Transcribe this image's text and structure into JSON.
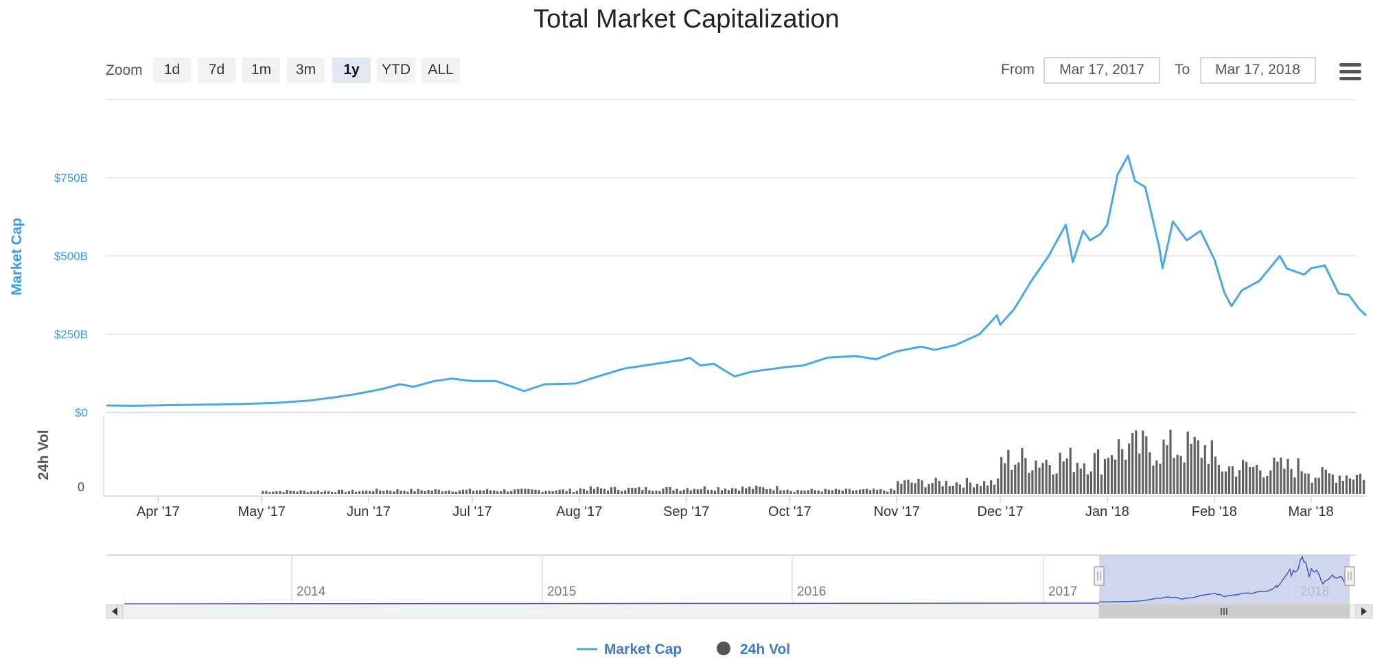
{
  "chart_data": {
    "type": "line",
    "title": "Total Market Capitalization",
    "zoom": {
      "label": "Zoom",
      "buttons": [
        "1d",
        "7d",
        "1m",
        "3m",
        "1y",
        "YTD",
        "ALL"
      ],
      "selected": "1y"
    },
    "range": {
      "from_label": "From",
      "from_value": "Mar 17, 2017",
      "to_label": "To",
      "to_value": "Mar 17, 2018"
    },
    "menu_icon": "hamburger-menu-icon",
    "market_cap_axis": {
      "title": "Market Cap",
      "ticks": [
        "$0",
        "$250B",
        "$500B",
        "$750B"
      ],
      "tick_values": [
        0,
        250,
        500,
        750
      ],
      "range": [
        0,
        1000
      ],
      "unit": "billion USD",
      "color": "#3d9ddc"
    },
    "volume_axis": {
      "title": "24h Vol",
      "ticks": [
        "0"
      ],
      "color": "#555555"
    },
    "x_axis": {
      "ticks": [
        "Apr '17",
        "May '17",
        "Jun '17",
        "Jul '17",
        "Aug '17",
        "Sep '17",
        "Oct '17",
        "Nov '17",
        "Dec '17",
        "Jan '18",
        "Feb '18",
        "Mar '18"
      ],
      "range": [
        "2017-03-17",
        "2018-03-17"
      ]
    },
    "series": [
      {
        "name": "Market Cap",
        "color": "#4aa7e0",
        "points": [
          [
            "2017-03-17",
            22
          ],
          [
            "2017-03-25",
            21
          ],
          [
            "2017-04-05",
            23
          ],
          [
            "2017-04-15",
            25
          ],
          [
            "2017-04-25",
            27
          ],
          [
            "2017-05-05",
            30
          ],
          [
            "2017-05-15",
            38
          ],
          [
            "2017-05-22",
            48
          ],
          [
            "2017-05-28",
            58
          ],
          [
            "2017-06-05",
            75
          ],
          [
            "2017-06-10",
            90
          ],
          [
            "2017-06-14",
            82
          ],
          [
            "2017-06-20",
            100
          ],
          [
            "2017-06-25",
            108
          ],
          [
            "2017-07-01",
            100
          ],
          [
            "2017-07-08",
            100
          ],
          [
            "2017-07-16",
            68
          ],
          [
            "2017-07-22",
            90
          ],
          [
            "2017-07-31",
            92
          ],
          [
            "2017-08-05",
            110
          ],
          [
            "2017-08-14",
            140
          ],
          [
            "2017-08-20",
            150
          ],
          [
            "2017-08-31",
            168
          ],
          [
            "2017-09-02",
            175
          ],
          [
            "2017-09-05",
            150
          ],
          [
            "2017-09-09",
            155
          ],
          [
            "2017-09-15",
            115
          ],
          [
            "2017-09-20",
            130
          ],
          [
            "2017-09-30",
            145
          ],
          [
            "2017-10-05",
            150
          ],
          [
            "2017-10-12",
            175
          ],
          [
            "2017-10-20",
            180
          ],
          [
            "2017-10-26",
            170
          ],
          [
            "2017-11-01",
            195
          ],
          [
            "2017-11-08",
            210
          ],
          [
            "2017-11-12",
            200
          ],
          [
            "2017-11-18",
            215
          ],
          [
            "2017-11-25",
            250
          ],
          [
            "2017-11-30",
            310
          ],
          [
            "2017-12-01",
            280
          ],
          [
            "2017-12-05",
            330
          ],
          [
            "2017-12-10",
            420
          ],
          [
            "2017-12-15",
            500
          ],
          [
            "2017-12-20",
            600
          ],
          [
            "2017-12-22",
            480
          ],
          [
            "2017-12-25",
            580
          ],
          [
            "2017-12-27",
            550
          ],
          [
            "2017-12-30",
            570
          ],
          [
            "2018-01-01",
            600
          ],
          [
            "2018-01-04",
            760
          ],
          [
            "2018-01-07",
            820
          ],
          [
            "2018-01-09",
            740
          ],
          [
            "2018-01-12",
            720
          ],
          [
            "2018-01-16",
            530
          ],
          [
            "2018-01-17",
            460
          ],
          [
            "2018-01-20",
            610
          ],
          [
            "2018-01-24",
            550
          ],
          [
            "2018-01-28",
            580
          ],
          [
            "2018-02-01",
            490
          ],
          [
            "2018-02-04",
            380
          ],
          [
            "2018-02-06",
            340
          ],
          [
            "2018-02-09",
            390
          ],
          [
            "2018-02-14",
            420
          ],
          [
            "2018-02-20",
            500
          ],
          [
            "2018-02-22",
            460
          ],
          [
            "2018-02-27",
            440
          ],
          [
            "2018-03-01",
            460
          ],
          [
            "2018-03-05",
            470
          ],
          [
            "2018-03-09",
            380
          ],
          [
            "2018-03-12",
            375
          ],
          [
            "2018-03-15",
            330
          ],
          [
            "2018-03-17",
            310
          ]
        ]
      },
      {
        "name": "24h Vol",
        "type": "column",
        "color": "#555555",
        "monthly_level": [
          [
            "2017-03",
            0.0
          ],
          [
            "2017-04",
            0.0
          ],
          [
            "2017-05",
            0.04
          ],
          [
            "2017-06",
            0.05
          ],
          [
            "2017-07",
            0.05
          ],
          [
            "2017-08",
            0.07
          ],
          [
            "2017-09",
            0.08
          ],
          [
            "2017-10",
            0.05
          ],
          [
            "2017-11",
            0.15
          ],
          [
            "2017-12",
            0.45
          ],
          [
            "2018-01",
            0.6
          ],
          [
            "2018-02",
            0.35
          ],
          [
            "2018-03",
            0.25
          ]
        ]
      }
    ],
    "navigator": {
      "years": [
        "2014",
        "2015",
        "2016",
        "2017",
        "2018"
      ],
      "selected_range": [
        "2017-03-17",
        "2018-03-17"
      ]
    },
    "legend": [
      {
        "name": "Market Cap",
        "symbol": "line",
        "color": "#4aa7e0"
      },
      {
        "name": "24h Vol",
        "symbol": "circle",
        "color": "#555555"
      }
    ]
  }
}
